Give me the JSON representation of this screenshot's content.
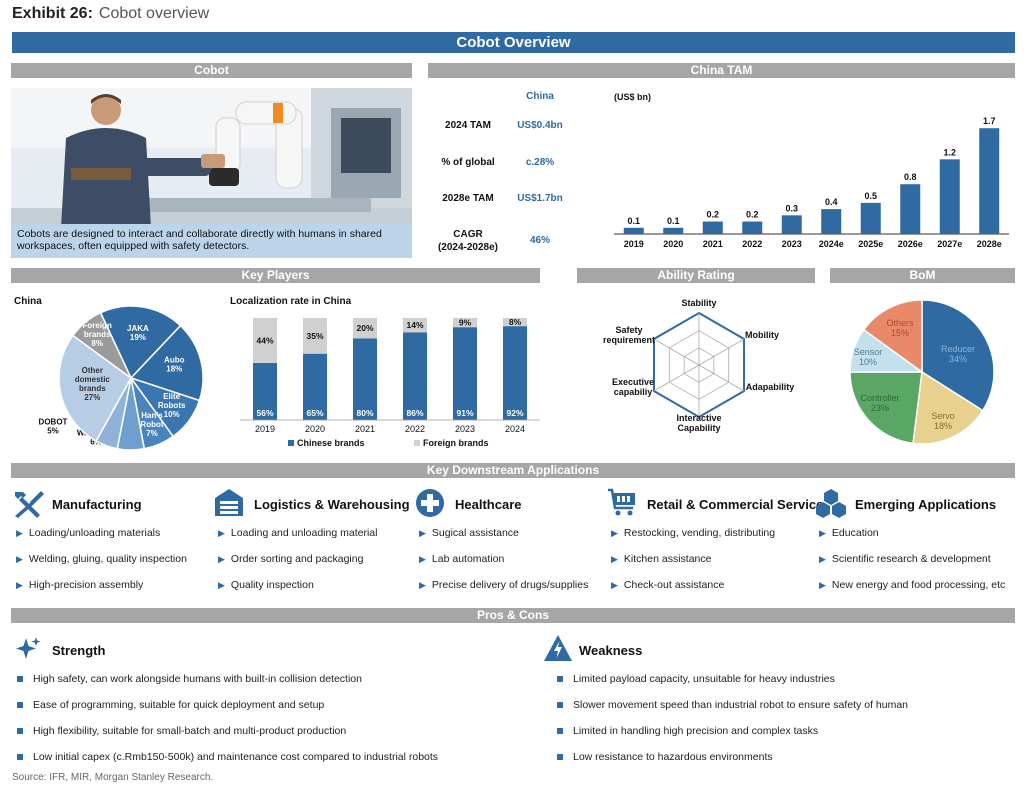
{
  "exhibit": {
    "label": "Exhibit 26:",
    "title": "Cobot overview"
  },
  "main_title": "Cobot Overview",
  "sections": {
    "cobot": "Cobot",
    "china_tam": "China TAM",
    "key_players": "Key Players",
    "ability_rating": "Ability Rating",
    "bom": "BoM",
    "applications": "Key Downstream Applications",
    "pros_cons": "Pros & Cons"
  },
  "cobot_caption": "Cobots are designed to interact and collaborate directly with humans in shared workspaces, often equipped with safety detectors.",
  "tam_table": {
    "header": "China",
    "rows": [
      {
        "label": "2024 TAM",
        "value": "US$0.4bn"
      },
      {
        "label": "% of global",
        "value": "c.28%"
      },
      {
        "label": "2028e TAM",
        "value": "US$1.7bn"
      },
      {
        "label": "CAGR\n(2024-2028e)",
        "value": "46%"
      }
    ]
  },
  "chart_data": [
    {
      "type": "bar",
      "unit_label": "(US$ bn)",
      "categories": [
        "2019",
        "2020",
        "2021",
        "2022",
        "2023",
        "2024e",
        "2025e",
        "2026e",
        "2027e",
        "2028e"
      ],
      "values": [
        0.1,
        0.1,
        0.2,
        0.2,
        0.3,
        0.4,
        0.5,
        0.8,
        1.2,
        1.7
      ],
      "ylim": [
        0,
        1.8
      ],
      "color": "#2f6aa3"
    },
    {
      "type": "pie",
      "title": "China",
      "slices": [
        {
          "label": "JAKA",
          "value": 19,
          "color": "#2f6aa3"
        },
        {
          "label": "Aubo",
          "value": 18,
          "color": "#2f6aa3"
        },
        {
          "label": "Elite\nRobots",
          "value": 10,
          "color": "#3a76b1"
        },
        {
          "label": "Han's\nRobot",
          "value": 7,
          "color": "#4b84bd"
        },
        {
          "label": "Warsonco",
          "value": 6,
          "color": "#6f9fcf"
        },
        {
          "label": "DOBOT",
          "value": 5,
          "color": "#8fb3d8"
        },
        {
          "label": "Other\ndomestic\nbrands",
          "value": 27,
          "color": "#b7cde6"
        },
        {
          "label": "Foreign\nbrands",
          "value": 8,
          "color": "#9a9a9a"
        }
      ]
    },
    {
      "type": "bar",
      "stacked": true,
      "title": "Localization rate in China",
      "categories": [
        "2019",
        "2020",
        "2021",
        "2022",
        "2023",
        "2024"
      ],
      "series": [
        {
          "name": "Chinese brands",
          "values": [
            56,
            65,
            80,
            86,
            91,
            92
          ],
          "color": "#2f6aa3"
        },
        {
          "name": "Foreign brands",
          "values": [
            44,
            35,
            20,
            14,
            9,
            8
          ],
          "color": "#d0d0d0"
        }
      ],
      "ylim": [
        0,
        100
      ]
    },
    {
      "type": "radar",
      "axes": [
        "Stability",
        "Mobility",
        "Adapability",
        "Interactive\nCapability",
        "Executive\ncapabiliy",
        "Safety\nrequirement"
      ],
      "color": "#2f6aa3"
    },
    {
      "type": "pie",
      "slices": [
        {
          "label": "Reducer",
          "value": 34,
          "color": "#2f6aa3"
        },
        {
          "label": "Servo",
          "value": 18,
          "color": "#e8d08e"
        },
        {
          "label": "Controller",
          "value": 23,
          "color": "#5aa665"
        },
        {
          "label": "Sensor",
          "value": 10,
          "color": "#c3e0ec"
        },
        {
          "label": "Others",
          "value": 15,
          "color": "#e8896a"
        }
      ]
    }
  ],
  "applications": [
    {
      "icon": "hammer-icon",
      "title": "Manufacturing",
      "items": [
        "Loading/unloading materials",
        "Welding, gluing, quality inspection",
        "High-precision assembly"
      ]
    },
    {
      "icon": "warehouse-icon",
      "title": "Logistics & Warehousing",
      "items": [
        "Loading and unloading material",
        "Order sorting and packaging",
        "Quality inspection"
      ]
    },
    {
      "icon": "medical-cross-icon",
      "title": "Healthcare",
      "items": [
        "Sugical assistance",
        "Lab automation",
        "Precise delivery of drugs/supplies"
      ]
    },
    {
      "icon": "shopping-cart-icon",
      "title": "Retail & Commercial Service",
      "items": [
        "Restocking, vending, distributing",
        "Kitchen assistance",
        "Check-out assistance"
      ]
    },
    {
      "icon": "cubes-icon",
      "title": "Emerging Applications",
      "items": [
        "Education",
        "Scientific research & development",
        "New energy and food processing, etc"
      ]
    }
  ],
  "strength": {
    "title": "Strength",
    "items": [
      "High safety, can work alongside humans with built-in collision detection",
      "Ease of programming, suitable for quick deployment and setup",
      "High flexibility, suitable for small-batch and multi-product production",
      "Low initial capex (c.Rmb150-500k) and maintenance cost compared to industrial robots"
    ]
  },
  "weakness": {
    "title": "Weakness",
    "items": [
      "Limited payload capacity, unsuitable for heavy industries",
      "Slower movement speed than industrial robot to ensure safety of human",
      "Limited in handling high precision and complex tasks",
      "Low resistance to hazardous environments"
    ]
  },
  "source": "Source: IFR, MIR, Morgan Stanley Research."
}
